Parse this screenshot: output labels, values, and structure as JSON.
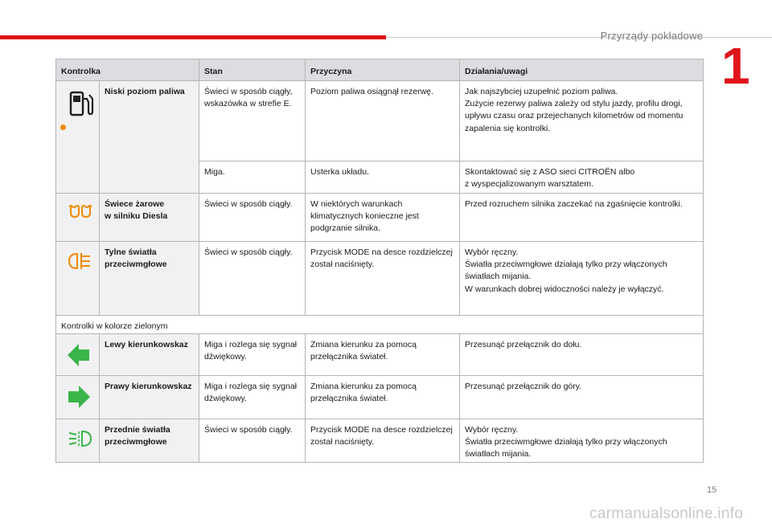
{
  "header": {
    "section_title": "Przyrządy pokładowe",
    "chapter_number": "1",
    "page_number": "15",
    "accent_color": "#e0121b"
  },
  "watermark": "carmanualsonline.info",
  "table": {
    "columns": [
      "Kontrolka",
      "Stan",
      "Przyczyna",
      "Działania/uwagi"
    ],
    "lamps": [
      {
        "icon": "fuel-pump-icon",
        "name": "Niski poziom paliwa",
        "indicator_color": "#f08a00",
        "rows": [
          {
            "state": "Świeci w sposób ciągły, wskazówka w strefie E.",
            "cause": "Poziom paliwa osiągnął rezerwę.",
            "action": "Jak najszybciej uzupełnić poziom paliwa.\nZużycie rezerwy paliwa zależy od stylu jazdy, profilu drogi, upływu czasu oraz przejechanych kilometrów od momentu zapalenia się kontrolki."
          },
          {
            "state": "Miga.",
            "cause": "Usterka układu.",
            "action": "Skontaktować się z ASO sieci CITROËN albo\nz wyspecjalizowanym warsztatem."
          }
        ]
      },
      {
        "icon": "glow-plug-icon",
        "name": "Świece żarowe\nw silniku Diesla",
        "rows": [
          {
            "state": "Świeci w sposób ciągły.",
            "cause": "W niektórych warunkach klimatycznych konieczne jest podgrzanie silnika.",
            "action": "Przed rozruchem silnika zaczekać na zgaśnięcie kontrolki."
          }
        ]
      },
      {
        "icon": "rear-fog-light-icon",
        "name": "Tylne światła przeciwmgłowe",
        "rows": [
          {
            "state": "Świeci w sposób ciągły.",
            "cause": "Przycisk MODE na desce rozdzielczej został naciśnięty.",
            "action": "Wybór ręczny.\nŚwiatła przeciwmgłowe działają tylko przy włączonych światłach mijania.\nW warunkach dobrej widoczności należy je wyłączyć."
          }
        ]
      }
    ],
    "subsection": "Kontrolki w kolorze zielonym",
    "green_lamps": [
      {
        "icon": "left-arrow-icon",
        "name": "Lewy kierunkowskaz",
        "state": "Miga i rozlega się sygnał dźwiękowy.",
        "cause": "Zmiana kierunku za pomocą przełącznika świateł.",
        "action": "Przesunąć przełącznik do dołu."
      },
      {
        "icon": "right-arrow-icon",
        "name": "Prawy kierunkowskaz",
        "state": "Miga i rozlega się sygnał dźwiękowy.",
        "cause": "Zmiana kierunku za pomocą przełącznika świateł.",
        "action": "Przesunąć przełącznik do góry."
      },
      {
        "icon": "front-fog-light-icon",
        "name": "Przednie światła przeciwmgłowe",
        "state": "Świeci w sposób ciągły.",
        "cause": "Przycisk MODE na desce rozdzielczej został naciśnięty.",
        "action": "Wybór ręczny.\nŚwiatła przeciwmgłowe działają tylko przy włączonych światłach mijania."
      }
    ],
    "green_color": "#3ab54a",
    "amber_color": "#f08a00"
  }
}
